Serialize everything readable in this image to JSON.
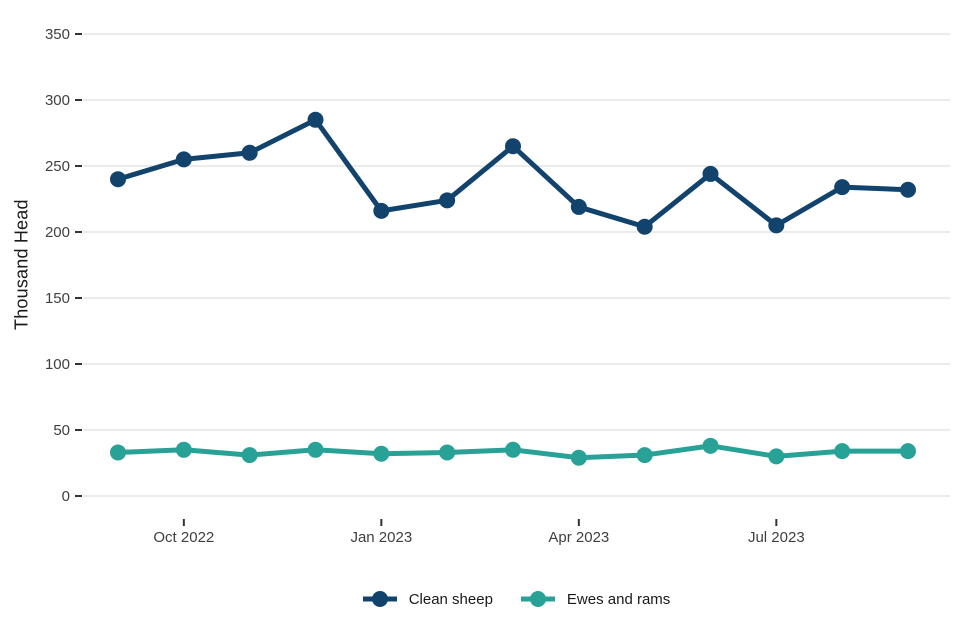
{
  "chart_data": {
    "type": "line",
    "title": "",
    "xlabel": "",
    "ylabel": "Thousand Head",
    "x": [
      "Sep 2022",
      "Oct 2022",
      "Nov 2022",
      "Dec 2022",
      "Jan 2023",
      "Feb 2023",
      "Mar 2023",
      "Apr 2023",
      "May 2023",
      "Jun 2023",
      "Jul 2023",
      "Aug 2023",
      "Sep 2023"
    ],
    "series": [
      {
        "name": "Clean sheep",
        "color": "#12436D",
        "values": [
          240,
          255,
          260,
          285,
          216,
          224,
          265,
          219,
          204,
          244,
          205,
          234,
          232
        ]
      },
      {
        "name": "Ewes and rams",
        "color": "#28A197",
        "values": [
          33,
          35,
          31,
          35,
          32,
          33,
          35,
          29,
          31,
          38,
          30,
          34,
          34
        ]
      }
    ],
    "ylim": [
      0,
      350
    ],
    "yticks": [
      0,
      50,
      100,
      150,
      200,
      250,
      300,
      350
    ],
    "x_axis_ticks": [
      {
        "label": "Oct 2022",
        "index": 1
      },
      {
        "label": "Jan 2023",
        "index": 4
      },
      {
        "label": "Apr 2023",
        "index": 7
      },
      {
        "label": "Jul 2023",
        "index": 10
      }
    ],
    "grid": "horizontal-only",
    "legend_position": "bottom"
  },
  "style": {
    "background": "#ffffff",
    "grid_color": "#ebebeb",
    "tick_mark_color": "#333333",
    "axis_text_color": "#404040",
    "axis_title_color": "#1a1a1a"
  }
}
